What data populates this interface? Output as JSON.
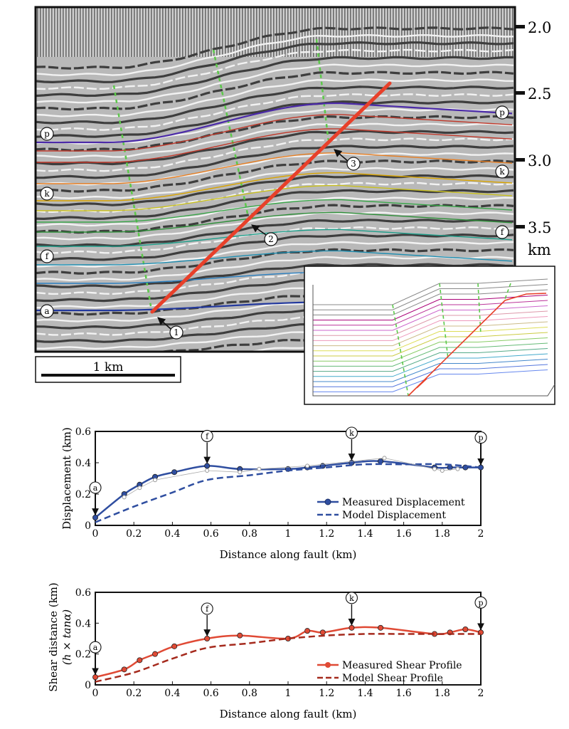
{
  "seismic": {
    "depth_labels": [
      "2.0",
      "2.5",
      "3.0",
      "3.5"
    ],
    "depth_values": [
      2.0,
      2.5,
      3.0,
      3.5
    ],
    "depth_unit": "km",
    "scale_bar": "1 km",
    "horizon_markers": [
      "p",
      "k",
      "f",
      "a"
    ],
    "fault_points": [
      "1",
      "2",
      "3"
    ],
    "colors": {
      "fault": "#e8402a",
      "axial_surface": "#5cc94a",
      "horizon_p": "#4b2aa8",
      "horizon_k": "#d9a400",
      "horizon_f": "#1f9e8a",
      "horizon_a": "#23399e"
    }
  },
  "chart_data": [
    {
      "type": "line",
      "xlabel": "Distance along fault (km)",
      "ylabel": "Displacement (km)",
      "xlim": [
        0,
        2
      ],
      "ylim": [
        0,
        0.6
      ],
      "xticks": [
        "0",
        "0.2",
        "0.4",
        "0.6",
        "0.8",
        "1",
        "1.2",
        "1.4",
        "1.6",
        "1.8",
        "2"
      ],
      "yticks": [
        "0",
        "0.2",
        "0.4",
        "0.6"
      ],
      "annotations": [
        {
          "label": "a",
          "x": 0.0,
          "y": 0.05
        },
        {
          "label": "f",
          "x": 0.58,
          "y": 0.38
        },
        {
          "label": "k",
          "x": 1.33,
          "y": 0.4
        },
        {
          "label": "p",
          "x": 2.0,
          "y": 0.37
        }
      ],
      "series": [
        {
          "name": "Measured Displacement",
          "style": "solid-markers",
          "color": "#2f4ea0",
          "x": [
            0,
            0.15,
            0.23,
            0.31,
            0.41,
            0.58,
            0.75,
            1.0,
            1.1,
            1.18,
            1.33,
            1.48,
            1.76,
            1.84,
            1.92,
            2.0
          ],
          "y": [
            0.05,
            0.2,
            0.26,
            0.31,
            0.34,
            0.38,
            0.36,
            0.36,
            0.37,
            0.38,
            0.4,
            0.41,
            0.37,
            0.37,
            0.37,
            0.37
          ]
        },
        {
          "name": "Model Displacement",
          "style": "dashed",
          "color": "#2f4ea0",
          "x": [
            0,
            0.2,
            0.4,
            0.58,
            0.8,
            1.0,
            1.2,
            1.4,
            1.6,
            1.8,
            2.0
          ],
          "y": [
            0.02,
            0.12,
            0.21,
            0.29,
            0.32,
            0.35,
            0.37,
            0.39,
            0.39,
            0.39,
            0.37
          ]
        },
        {
          "name": "",
          "style": "raw-points",
          "color": "#999999",
          "x": [
            0.15,
            0.23,
            0.31,
            0.58,
            0.75,
            0.85,
            1.1,
            1.5,
            1.76,
            1.8,
            1.88
          ],
          "y": [
            0.18,
            0.24,
            0.29,
            0.35,
            0.34,
            0.36,
            0.38,
            0.43,
            0.36,
            0.35,
            0.36
          ]
        }
      ]
    },
    {
      "type": "line",
      "xlabel": "Distance along fault (km)",
      "ylabel": "Shear distance (km)",
      "ylabel2": "(h × tanα)",
      "xlim": [
        0,
        2
      ],
      "ylim": [
        0,
        0.6
      ],
      "xticks": [
        "0",
        "0.2",
        "0.4",
        "0.6",
        "0.8",
        "1",
        "1.2",
        "1.4",
        "1.6",
        "1.8",
        "2"
      ],
      "yticks": [
        "0",
        "0.2",
        "0.4",
        "0.6"
      ],
      "annotations": [
        {
          "label": "a",
          "x": 0.0,
          "y": 0.05
        },
        {
          "label": "f",
          "x": 0.58,
          "y": 0.3
        },
        {
          "label": "k",
          "x": 1.33,
          "y": 0.37
        },
        {
          "label": "p",
          "x": 2.0,
          "y": 0.34
        }
      ],
      "series": [
        {
          "name": "Measured Shear Profile",
          "style": "solid-markers",
          "color": "#e04a35",
          "x": [
            0,
            0.15,
            0.23,
            0.31,
            0.41,
            0.58,
            0.75,
            1.0,
            1.1,
            1.18,
            1.33,
            1.48,
            1.76,
            1.84,
            1.92,
            2.0
          ],
          "y": [
            0.05,
            0.1,
            0.16,
            0.2,
            0.25,
            0.3,
            0.32,
            0.3,
            0.35,
            0.34,
            0.37,
            0.37,
            0.33,
            0.34,
            0.36,
            0.34
          ]
        },
        {
          "name": "Model Shear Profile",
          "style": "dashed",
          "color": "#a52a1d",
          "x": [
            0,
            0.2,
            0.4,
            0.58,
            0.8,
            1.0,
            1.2,
            1.4,
            1.6,
            1.8,
            2.0
          ],
          "y": [
            0.02,
            0.08,
            0.17,
            0.24,
            0.27,
            0.3,
            0.32,
            0.33,
            0.33,
            0.33,
            0.33
          ]
        }
      ]
    }
  ]
}
